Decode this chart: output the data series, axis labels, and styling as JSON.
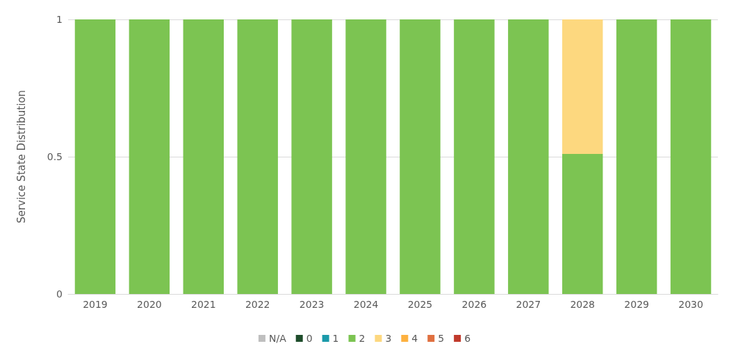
{
  "chart_data": {
    "type": "bar",
    "stacked": true,
    "ylabel": "Service State Distribution",
    "categories": [
      "2019",
      "2020",
      "2021",
      "2022",
      "2023",
      "2024",
      "2025",
      "2026",
      "2027",
      "2028",
      "2029",
      "2030"
    ],
    "series": [
      {
        "name": "N/A",
        "color": "#bfbfbf",
        "values": [
          0,
          0,
          0,
          0,
          0,
          0,
          0,
          0,
          0,
          0,
          0,
          0
        ]
      },
      {
        "name": "0",
        "color": "#1e4d2b",
        "values": [
          0,
          0,
          0,
          0,
          0,
          0,
          0,
          0,
          0,
          0,
          0,
          0
        ]
      },
      {
        "name": "1",
        "color": "#1b9aaa",
        "values": [
          0,
          0,
          0,
          0,
          0,
          0,
          0,
          0,
          0,
          0,
          0,
          0
        ]
      },
      {
        "name": "2",
        "color": "#7cc452",
        "values": [
          1,
          1,
          1,
          1,
          1,
          1,
          1,
          1,
          1,
          0.51,
          1,
          1
        ]
      },
      {
        "name": "3",
        "color": "#fdd87f",
        "values": [
          0,
          0,
          0,
          0,
          0,
          0,
          0,
          0,
          0,
          0.49,
          0,
          0
        ]
      },
      {
        "name": "4",
        "color": "#fdb13f",
        "values": [
          0,
          0,
          0,
          0,
          0,
          0,
          0,
          0,
          0,
          0,
          0,
          0
        ]
      },
      {
        "name": "5",
        "color": "#e07040",
        "values": [
          0,
          0,
          0,
          0,
          0,
          0,
          0,
          0,
          0,
          0,
          0,
          0
        ]
      },
      {
        "name": "6",
        "color": "#c0392b",
        "values": [
          0,
          0,
          0,
          0,
          0,
          0,
          0,
          0,
          0,
          0,
          0,
          0
        ]
      }
    ],
    "ylim": [
      0,
      1
    ],
    "yticks": [
      0,
      0.5,
      1
    ],
    "grid": "y",
    "legend": "bottom"
  }
}
